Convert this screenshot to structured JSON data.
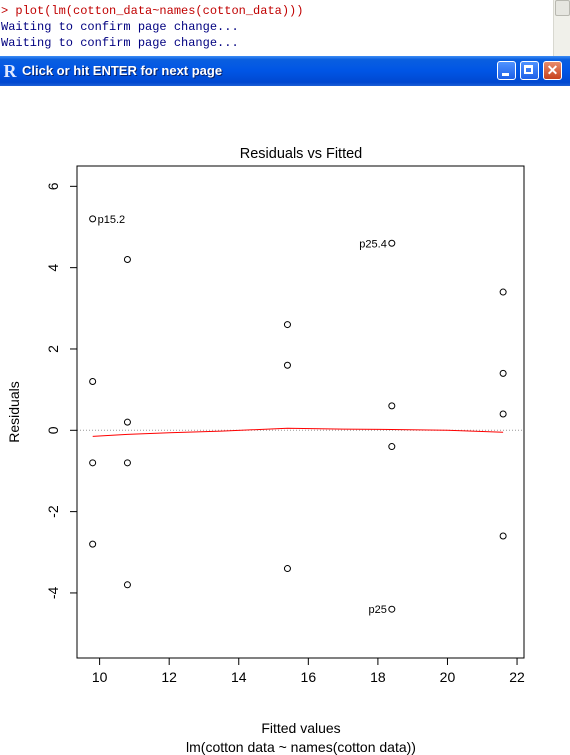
{
  "console": {
    "lines": [
      "> plot(lm(cotton_data~names(cotton_data)))",
      "Waiting to confirm page change...",
      "Waiting to confirm page change..."
    ]
  },
  "window": {
    "title": "Click or hit ENTER for next page",
    "logo_text": "R",
    "close_glyph": "✕"
  },
  "chart_data": {
    "type": "scatter",
    "title": "Residuals vs Fitted",
    "xlabel": "Fitted values",
    "ylabel": "Residuals",
    "subtitle": "lm(cotton  data ~ names(cotton  data))",
    "xlim": [
      9.35,
      22.2
    ],
    "ylim": [
      -5.6,
      6.5
    ],
    "xticks": [
      10,
      12,
      14,
      16,
      18,
      20,
      22
    ],
    "yticks": [
      -4,
      -2,
      0,
      2,
      4,
      6
    ],
    "ytick_labels": [
      "-4",
      "-2",
      "0",
      "2",
      "4",
      "6"
    ],
    "points": [
      {
        "x": 9.8,
        "y": 5.2
      },
      {
        "x": 9.8,
        "y": 1.2
      },
      {
        "x": 9.8,
        "y": -0.8
      },
      {
        "x": 9.8,
        "y": -2.8
      },
      {
        "x": 10.8,
        "y": 4.2
      },
      {
        "x": 10.8,
        "y": 0.2
      },
      {
        "x": 10.8,
        "y": -0.8
      },
      {
        "x": 10.8,
        "y": -3.8
      },
      {
        "x": 15.4,
        "y": 2.6
      },
      {
        "x": 15.4,
        "y": 1.6
      },
      {
        "x": 15.4,
        "y": -3.4
      },
      {
        "x": 18.4,
        "y": 4.6
      },
      {
        "x": 18.4,
        "y": 0.6
      },
      {
        "x": 18.4,
        "y": -0.4
      },
      {
        "x": 18.4,
        "y": -4.4
      },
      {
        "x": 21.6,
        "y": 3.4
      },
      {
        "x": 21.6,
        "y": 1.4
      },
      {
        "x": 21.6,
        "y": 0.4
      },
      {
        "x": 21.6,
        "y": -2.6
      }
    ],
    "point_labels": [
      {
        "text": "p15.2",
        "x": 9.8,
        "y": 5.2,
        "side": "right"
      },
      {
        "text": "p25.4",
        "x": 18.4,
        "y": 4.6,
        "side": "left"
      },
      {
        "text": "p25",
        "x": 18.4,
        "y": -4.4,
        "side": "left"
      }
    ],
    "smoother": [
      {
        "x": 9.8,
        "y": -0.15
      },
      {
        "x": 10.8,
        "y": -0.1
      },
      {
        "x": 12,
        "y": -0.06
      },
      {
        "x": 13.5,
        "y": -0.02
      },
      {
        "x": 15.4,
        "y": 0.05
      },
      {
        "x": 17,
        "y": 0.03
      },
      {
        "x": 18.4,
        "y": 0.02
      },
      {
        "x": 20,
        "y": 0.0
      },
      {
        "x": 21.6,
        "y": -0.05
      }
    ],
    "reference_line_y": 0,
    "colors": {
      "points": "#000000",
      "smoother": "#ff0000",
      "reference": "#999999"
    }
  }
}
